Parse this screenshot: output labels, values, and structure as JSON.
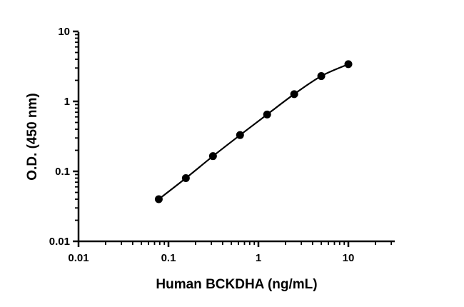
{
  "chart_data": {
    "type": "scatter",
    "title": "",
    "xlabel": "Human BCKDHA (ng/mL)",
    "ylabel": "O.D. (450 nm)",
    "x_scale": "log",
    "y_scale": "log",
    "xlim": [
      0.01,
      30
    ],
    "ylim": [
      0.01,
      10
    ],
    "x_ticks": [
      0.01,
      0.1,
      1,
      10
    ],
    "x_tick_labels": [
      "0.01",
      "0.1",
      "1",
      "10"
    ],
    "y_ticks": [
      0.01,
      0.1,
      1,
      10
    ],
    "y_tick_labels": [
      "0.01",
      "0.1",
      "1",
      "10"
    ],
    "grid": false,
    "legend": "none",
    "fit_line": true,
    "colors": {
      "points": "#000000",
      "line": "#000000",
      "axes": "#000000"
    },
    "series": [
      {
        "x": [
          0.078,
          0.156,
          0.3125,
          0.625,
          1.25,
          2.5,
          5,
          10
        ],
        "y": [
          0.04,
          0.08,
          0.165,
          0.33,
          0.65,
          1.27,
          2.3,
          3.4
        ]
      }
    ]
  }
}
